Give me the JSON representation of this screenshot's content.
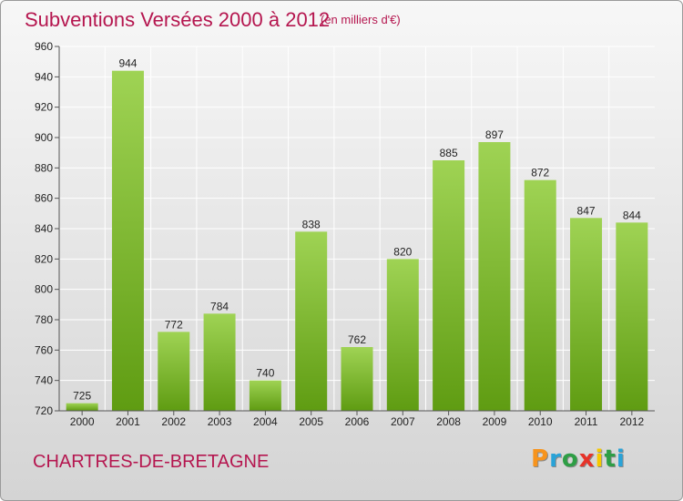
{
  "title": "Subventions Versées 2000 à 2012",
  "subtitle": "(en milliers d'€)",
  "commune": "CHARTRES-DE-BRETAGNE",
  "logo": {
    "letters": [
      "P",
      "r",
      "o",
      "x",
      "i",
      "t",
      "i"
    ],
    "colors": [
      "#f7941d",
      "#29a3d8",
      "#2e9e45",
      "#e63329",
      "#f6c800",
      "#2e9e45",
      "#29a3d8"
    ]
  },
  "colors": {
    "title": "#b5164f",
    "bar_top": "#9fd354",
    "bar_bottom": "#5f9c12",
    "grid": "#ffffff"
  },
  "chart_data": {
    "type": "bar",
    "title": "Subventions Versées 2000 à 2012",
    "subtitle": "(en milliers d'€)",
    "xlabel": "",
    "ylabel": "",
    "ylim": [
      720,
      960
    ],
    "yticks": [
      720,
      740,
      760,
      780,
      800,
      820,
      840,
      860,
      880,
      900,
      920,
      940,
      960
    ],
    "categories": [
      "2000",
      "2001",
      "2002",
      "2003",
      "2004",
      "2005",
      "2006",
      "2007",
      "2008",
      "2009",
      "2010",
      "2011",
      "2012"
    ],
    "values": [
      725,
      944,
      772,
      784,
      740,
      838,
      762,
      820,
      885,
      897,
      872,
      847,
      844
    ],
    "grid": true,
    "legend": "none"
  }
}
